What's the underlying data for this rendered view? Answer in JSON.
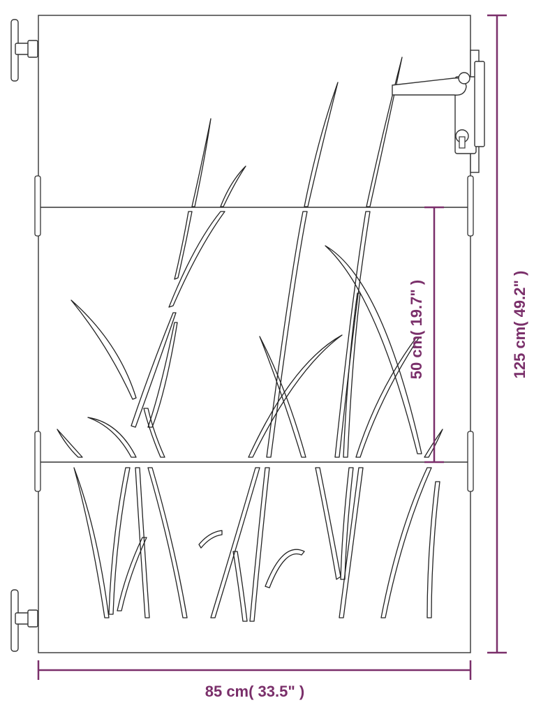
{
  "product": {
    "dimensions": {
      "width_label": "85 cm( 33.5\" )",
      "height_label": "125 cm( 49.2\" )",
      "inner_label": "50 cm( 19.7\" )"
    },
    "accent_color": "#7a2f6a",
    "icons": [
      "hinge-icon",
      "door-handle-icon",
      "keyhole-icon"
    ]
  }
}
